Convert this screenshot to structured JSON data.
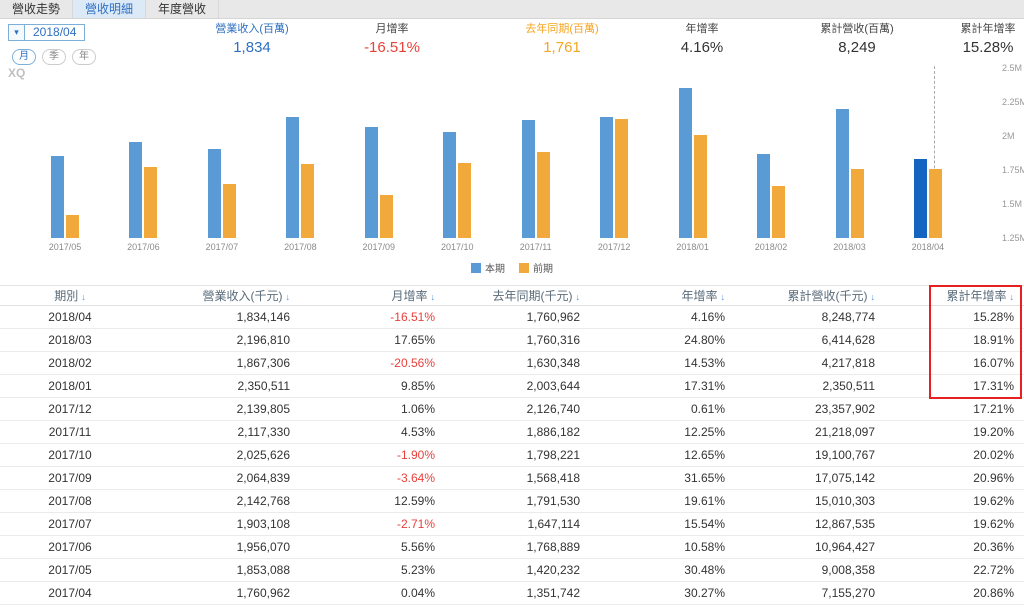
{
  "tabs": [
    {
      "label": "營收走勢",
      "active": false
    },
    {
      "label": "營收明細",
      "active": true
    },
    {
      "label": "年度營收",
      "active": false
    }
  ],
  "controls": {
    "period_select": "2018/04",
    "granularity": [
      {
        "label": "月",
        "active": true
      },
      {
        "label": "季",
        "active": false
      },
      {
        "label": "年",
        "active": false
      }
    ]
  },
  "stats": [
    {
      "label": "營業收入(百萬)",
      "value": "1,834",
      "label_color": "#2e6fc2",
      "value_color": "#2e6fc2"
    },
    {
      "label": "月增率",
      "value": "-16.51%",
      "label_color": "#444444",
      "value_color": "#e8413c"
    },
    {
      "label": "去年同期(百萬)",
      "value": "1,761",
      "label_color": "#f5a623",
      "value_color": "#f5a623"
    },
    {
      "label": "年增率",
      "value": "4.16%",
      "label_color": "#444444",
      "value_color": "#333333"
    },
    {
      "label": "累計營收(百萬)",
      "value": "8,249",
      "label_color": "#444444",
      "value_color": "#333333"
    },
    {
      "label": "累計年增率",
      "value": "15.28%",
      "label_color": "#444444",
      "value_color": "#333333"
    }
  ],
  "watermark": "XQ",
  "chart_data": {
    "type": "bar",
    "categories": [
      "2017/05",
      "2017/06",
      "2017/07",
      "2017/08",
      "2017/09",
      "2017/10",
      "2017/11",
      "2017/12",
      "2018/01",
      "2018/02",
      "2018/03",
      "2018/04"
    ],
    "series": [
      {
        "name": "本期",
        "color": "#5b9bd5",
        "values_millions": [
          1.853,
          1.956,
          1.903,
          2.143,
          2.065,
          2.026,
          2.117,
          2.14,
          2.351,
          1.867,
          2.197,
          1.834
        ]
      },
      {
        "name": "前期",
        "color": "#f2a93b",
        "values_millions": [
          1.42,
          1.769,
          1.647,
          1.792,
          1.568,
          1.798,
          1.886,
          2.127,
          2.004,
          1.63,
          1.76,
          1.761
        ]
      }
    ],
    "ylim": [
      1.25,
      2.5
    ],
    "yticks": [
      "2.5M",
      "2.25M",
      "2M",
      "1.75M",
      "1.5M",
      "1.25M"
    ],
    "highlight_last": true,
    "highlight_color": "#1565c0",
    "legend_position": "bottom",
    "grid": false
  },
  "table": {
    "columns": [
      "期別",
      "營業收入(千元)",
      "月增率",
      "去年同期(千元)",
      "年增率",
      "累計營收(千元)",
      "累計年增率"
    ],
    "rows": [
      [
        "2018/04",
        "1,834,146",
        "-16.51%",
        "1,760,962",
        "4.16%",
        "8,248,774",
        "15.28%"
      ],
      [
        "2018/03",
        "2,196,810",
        "17.65%",
        "1,760,316",
        "24.80%",
        "6,414,628",
        "18.91%"
      ],
      [
        "2018/02",
        "1,867,306",
        "-20.56%",
        "1,630,348",
        "14.53%",
        "4,217,818",
        "16.07%"
      ],
      [
        "2018/01",
        "2,350,511",
        "9.85%",
        "2,003,644",
        "17.31%",
        "2,350,511",
        "17.31%"
      ],
      [
        "2017/12",
        "2,139,805",
        "1.06%",
        "2,126,740",
        "0.61%",
        "23,357,902",
        "17.21%"
      ],
      [
        "2017/11",
        "2,117,330",
        "4.53%",
        "1,886,182",
        "12.25%",
        "21,218,097",
        "19.20%"
      ],
      [
        "2017/10",
        "2,025,626",
        "-1.90%",
        "1,798,221",
        "12.65%",
        "19,100,767",
        "20.02%"
      ],
      [
        "2017/09",
        "2,064,839",
        "-3.64%",
        "1,568,418",
        "31.65%",
        "17,075,142",
        "20.96%"
      ],
      [
        "2017/08",
        "2,142,768",
        "12.59%",
        "1,791,530",
        "19.61%",
        "15,010,303",
        "19.62%"
      ],
      [
        "2017/07",
        "1,903,108",
        "-2.71%",
        "1,647,114",
        "15.54%",
        "12,867,535",
        "19.62%"
      ],
      [
        "2017/06",
        "1,956,070",
        "5.56%",
        "1,768,889",
        "10.58%",
        "10,964,427",
        "20.36%"
      ],
      [
        "2017/05",
        "1,853,088",
        "5.23%",
        "1,420,232",
        "30.48%",
        "9,008,358",
        "22.72%"
      ],
      [
        "2017/04",
        "1,760,962",
        "0.04%",
        "1,351,742",
        "30.27%",
        "7,155,270",
        "20.86%"
      ]
    ]
  }
}
